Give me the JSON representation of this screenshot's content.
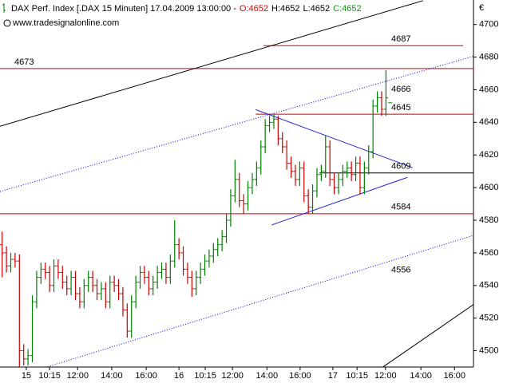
{
  "chart_data": {
    "type": "ohlc",
    "title": "DAX Perf. Index [.DAX  15 Minuten] 17.04.2009 13:00:00 -",
    "ohlc_labels": [
      {
        "text": "O:4652",
        "color": "#e00000"
      },
      {
        "text": "H:4652",
        "color": "#000000"
      },
      {
        "text": "L:4652",
        "color": "#000000"
      },
      {
        "text": "C:4652",
        "color": "#00a000"
      }
    ],
    "subtitle": "www.tradesignalonline.com",
    "y_unit": "€",
    "up_color": "#008000",
    "down_color": "#cc0000",
    "xlim": [
      -0.5,
      109.3
    ],
    "xticks": [
      {
        "value": 5.6,
        "label": "15"
      },
      {
        "value": 11,
        "label": "10:15"
      },
      {
        "value": 17.5,
        "label": "12:00"
      },
      {
        "value": 25.4,
        "label": "14:00"
      },
      {
        "value": 33.4,
        "label": "16:00"
      },
      {
        "value": 41,
        "label": "16"
      },
      {
        "value": 47.1,
        "label": "10:15"
      },
      {
        "value": 53.4,
        "label": "12:00"
      },
      {
        "value": 61.4,
        "label": "14:00"
      },
      {
        "value": 69.1,
        "label": "16:00"
      },
      {
        "value": 76.7,
        "label": "17"
      },
      {
        "value": 82.3,
        "label": "10:15"
      },
      {
        "value": 88.9,
        "label": "12:00"
      },
      {
        "value": 97.1,
        "label": "14:00"
      },
      {
        "value": 104.9,
        "label": "16:00"
      }
    ],
    "ylim": [
      4490,
      4715
    ],
    "yticks": [
      4500,
      4520,
      4540,
      4560,
      4580,
      4600,
      4620,
      4640,
      4660,
      4680,
      4700
    ],
    "open": [
      4565,
      4560,
      4552,
      4556,
      4555,
      4500,
      4495,
      4497,
      4530,
      4545,
      4550,
      4548,
      4540,
      4552,
      4548,
      4542,
      4538,
      4545,
      4535,
      4530,
      4540,
      4545,
      4540,
      4535,
      4538,
      4530,
      4542,
      4540,
      4535,
      4525,
      4512,
      4530,
      4542,
      4548,
      4545,
      4538,
      4542,
      4548,
      4550,
      4545,
      4555,
      4565,
      4560,
      4550,
      4545,
      4538,
      4545,
      4550,
      4555,
      4558,
      4562,
      4565,
      4570,
      4580,
      4595,
      4605,
      4592,
      4590,
      4600,
      4605,
      4612,
      4625,
      4638,
      4640,
      4642,
      4630,
      4625,
      4615,
      4610,
      4605,
      4612,
      4595,
      4588,
      4598,
      4608,
      4610,
      4625,
      4605,
      4600,
      4605,
      4610,
      4612,
      4608,
      4615,
      4600,
      4612,
      4622,
      4650,
      4655,
      4648,
      4652
    ],
    "high": [
      4573,
      4564,
      4560,
      4560,
      4559,
      4504,
      4501,
      4534,
      4549,
      4554,
      4554,
      4552,
      4556,
      4556,
      4552,
      4546,
      4549,
      4549,
      4539,
      4544,
      4549,
      4549,
      4544,
      4542,
      4542,
      4546,
      4546,
      4544,
      4539,
      4529,
      4534,
      4546,
      4552,
      4552,
      4549,
      4546,
      4552,
      4554,
      4554,
      4559,
      4580,
      4569,
      4564,
      4554,
      4549,
      4549,
      4554,
      4559,
      4562,
      4566,
      4569,
      4574,
      4584,
      4599,
      4617,
      4609,
      4596,
      4604,
      4609,
      4616,
      4629,
      4642,
      4644,
      4645,
      4644,
      4634,
      4629,
      4619,
      4614,
      4616,
      4616,
      4599,
      4602,
      4612,
      4614,
      4632,
      4629,
      4609,
      4609,
      4614,
      4616,
      4616,
      4619,
      4619,
      4616,
      4626,
      4654,
      4659,
      4659,
      4672,
      4652
    ],
    "low": [
      4545,
      4548,
      4548,
      4551,
      4490,
      4491,
      4491,
      4493,
      4526,
      4541,
      4544,
      4536,
      4536,
      4544,
      4538,
      4534,
      4534,
      4531,
      4526,
      4526,
      4536,
      4536,
      4531,
      4531,
      4526,
      4526,
      4536,
      4531,
      4521,
      4508,
      4508,
      4526,
      4538,
      4541,
      4534,
      4534,
      4538,
      4544,
      4541,
      4541,
      4551,
      4556,
      4546,
      4541,
      4533,
      4534,
      4541,
      4546,
      4551,
      4554,
      4558,
      4561,
      4566,
      4576,
      4591,
      4588,
      4584,
      4586,
      4596,
      4601,
      4608,
      4621,
      4634,
      4636,
      4626,
      4621,
      4611,
      4606,
      4601,
      4601,
      4591,
      4584,
      4584,
      4594,
      4604,
      4606,
      4601,
      4596,
      4596,
      4601,
      4606,
      4604,
      4604,
      4596,
      4596,
      4608,
      4618,
      4646,
      4644,
      4644,
      4652
    ],
    "close": [
      4560,
      4552,
      4556,
      4555,
      4500,
      4495,
      4497,
      4530,
      4545,
      4550,
      4548,
      4540,
      4552,
      4548,
      4542,
      4538,
      4545,
      4535,
      4530,
      4540,
      4545,
      4540,
      4535,
      4538,
      4530,
      4542,
      4540,
      4535,
      4525,
      4512,
      4530,
      4542,
      4548,
      4545,
      4538,
      4542,
      4548,
      4550,
      4545,
      4555,
      4565,
      4560,
      4550,
      4545,
      4538,
      4545,
      4550,
      4555,
      4558,
      4562,
      4565,
      4570,
      4580,
      4595,
      4605,
      4592,
      4590,
      4600,
      4605,
      4612,
      4625,
      4638,
      4640,
      4642,
      4630,
      4625,
      4615,
      4610,
      4605,
      4612,
      4595,
      4588,
      4598,
      4608,
      4610,
      4625,
      4605,
      4600,
      4605,
      4610,
      4612,
      4608,
      4615,
      4600,
      4612,
      4622,
      4650,
      4655,
      4648,
      4655,
      4652
    ],
    "levels": [
      {
        "value": 4673,
        "x": [
          -0.5,
          109.3
        ],
        "color": "#cc0000",
        "label_side": "left"
      },
      {
        "value": 4687,
        "x": [
          60.6,
          106.9
        ],
        "color": "#cc0000",
        "label_side": "right"
      },
      {
        "value": 4645,
        "x": [
          58.8,
          109.3
        ],
        "color": "#cc0000",
        "label_side": "right"
      },
      {
        "value": 4609,
        "x": [
          73.6,
          109.3
        ],
        "color": "#000000",
        "label_side": "right"
      },
      {
        "value": 4584,
        "x": [
          -0.5,
          109.3
        ],
        "color": "#cc0000",
        "label_side": "right"
      }
    ],
    "trendlines": [
      {
        "x": [
          -0.5,
          97.6
        ],
        "y": [
          4637.6,
          4714.6
        ],
        "color": "#000000",
        "dotted": false
      },
      {
        "x": [
          -0.5,
          109.3
        ],
        "y": [
          4597.6,
          4680.5
        ],
        "color": "#0000dd",
        "dotted": true,
        "label": 4666
      },
      {
        "x": [
          10.6,
          109.3
        ],
        "y": [
          4490.2,
          4570.7
        ],
        "color": "#0000dd",
        "dotted": true,
        "label": 4556
      },
      {
        "x": [
          88.4,
          109.3
        ],
        "y": [
          4490.2,
          4528.3
        ],
        "color": "#000000",
        "dotted": false
      },
      {
        "x": [
          58.8,
          95.2
        ],
        "y": [
          4647.8,
          4612.2
        ],
        "color": "#2222cc",
        "dotted": false
      },
      {
        "x": [
          62.5,
          94
        ],
        "y": [
          4577.1,
          4606.3
        ],
        "color": "#2222cc",
        "dotted": false
      }
    ]
  }
}
